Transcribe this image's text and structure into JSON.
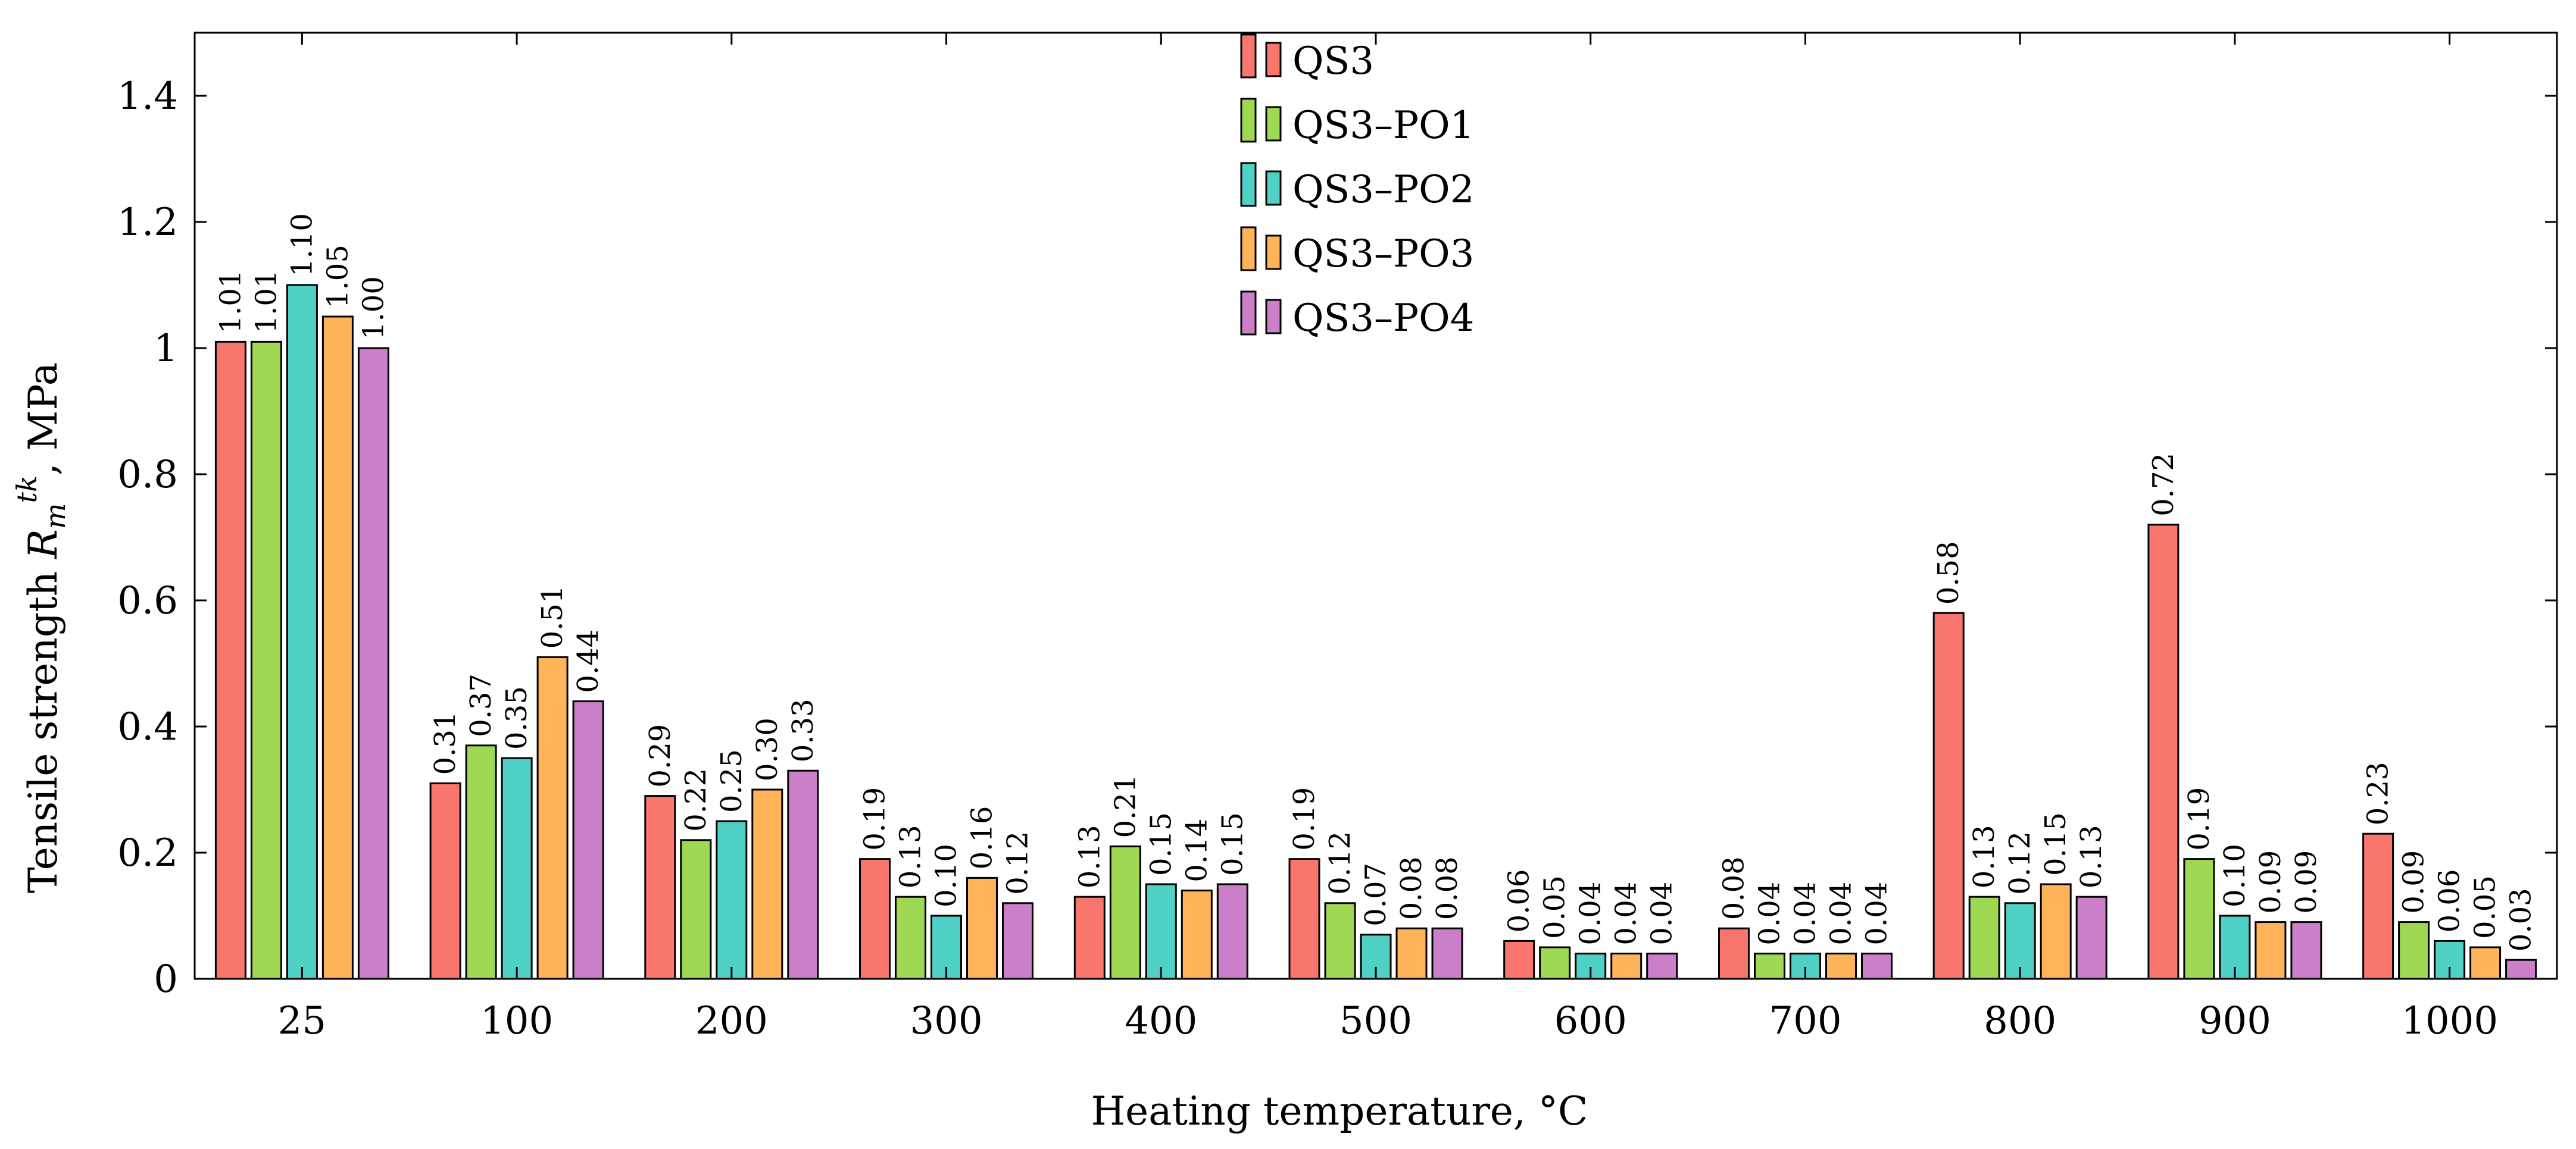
{
  "chart_data": {
    "type": "bar",
    "title": "",
    "xlabel": "Heating temperature, °C",
    "ylabel": "Tensile strength R_m^tk, MPa",
    "ylabel_parts": {
      "prefix": "Tensile strength ",
      "symbol": "R",
      "sub": "m",
      "sup": "tk",
      "suffix": ", MPa"
    },
    "ylim": [
      0,
      1.5
    ],
    "yticks": [
      "0",
      "0.2",
      "0.4",
      "0.6",
      "0.8",
      "1",
      "1.2",
      "1.4"
    ],
    "ytick_values": [
      0,
      0.2,
      0.4,
      0.6,
      0.8,
      1.0,
      1.2,
      1.4
    ],
    "categories": [
      "25",
      "100",
      "200",
      "300",
      "400",
      "500",
      "600",
      "700",
      "800",
      "900",
      "1000"
    ],
    "legend_position": "top-center",
    "grid": false,
    "series": [
      {
        "name": "QS3",
        "color": "#f8766d",
        "values": [
          1.01,
          0.31,
          0.29,
          0.19,
          0.13,
          0.19,
          0.06,
          0.08,
          0.58,
          0.72,
          0.23
        ],
        "labels": [
          "1.01",
          "0.31",
          "0.29",
          "0.19",
          "0.13",
          "0.19",
          "0.06",
          "0.08",
          "0.58",
          "0.72",
          "0.23"
        ]
      },
      {
        "name": "QS3–PO1",
        "color": "#9fd852",
        "values": [
          1.01,
          0.37,
          0.22,
          0.13,
          0.21,
          0.12,
          0.05,
          0.04,
          0.13,
          0.19,
          0.09
        ],
        "labels": [
          "1.01",
          "0.37",
          "0.22",
          "0.13",
          "0.21",
          "0.12",
          "0.05",
          "0.04",
          "0.13",
          "0.19",
          "0.09"
        ]
      },
      {
        "name": "QS3–PO2",
        "color": "#4fd1c5",
        "values": [
          1.1,
          0.35,
          0.25,
          0.1,
          0.15,
          0.07,
          0.04,
          0.04,
          0.12,
          0.1,
          0.06
        ],
        "labels": [
          "1.10",
          "0.35",
          "0.25",
          "0.10",
          "0.15",
          "0.07",
          "0.04",
          "0.04",
          "0.12",
          "0.10",
          "0.06"
        ]
      },
      {
        "name": "QS3–PO3",
        "color": "#ffb459",
        "values": [
          1.05,
          0.51,
          0.3,
          0.16,
          0.14,
          0.08,
          0.04,
          0.04,
          0.15,
          0.09,
          0.05
        ],
        "labels": [
          "1.05",
          "0.51",
          "0.30",
          "0.16",
          "0.14",
          "0.08",
          "0.04",
          "0.04",
          "0.15",
          "0.09",
          "0.05"
        ]
      },
      {
        "name": "QS3–PO4",
        "color": "#cc7fc9",
        "values": [
          1.0,
          0.44,
          0.33,
          0.12,
          0.15,
          0.08,
          0.04,
          0.04,
          0.13,
          0.09,
          0.03
        ],
        "labels": [
          "1.00",
          "0.44",
          "0.33",
          "0.12",
          "0.15",
          "0.08",
          "0.04",
          "0.04",
          "0.13",
          "0.09",
          "0.03"
        ]
      }
    ]
  }
}
